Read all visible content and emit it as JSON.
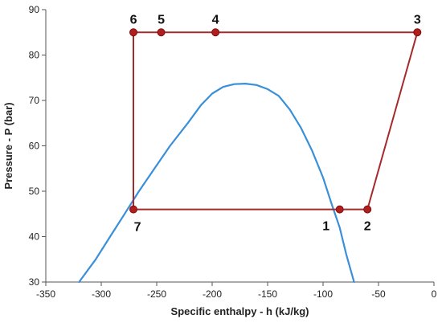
{
  "chart_data": {
    "type": "line",
    "xlabel": "Specific enthalpy - h (kJ/kg)",
    "ylabel": "Pressure - P (bar)",
    "xlim": [
      -350,
      0
    ],
    "ylim": [
      30,
      90
    ],
    "x_ticks": [
      -350,
      -300,
      -250,
      -200,
      -150,
      -100,
      -50,
      0
    ],
    "y_ticks": [
      30,
      40,
      50,
      60,
      70,
      80,
      90
    ],
    "grid": false,
    "series": [
      {
        "role": "saturation-dome",
        "color": "#3a8fd9",
        "points": [
          [
            -320,
            30
          ],
          [
            -305,
            35
          ],
          [
            -292,
            40
          ],
          [
            -279,
            45
          ],
          [
            -266,
            50
          ],
          [
            -252,
            55
          ],
          [
            -238,
            60
          ],
          [
            -222,
            65
          ],
          [
            -210,
            69
          ],
          [
            -200,
            71.5
          ],
          [
            -190,
            73
          ],
          [
            -180,
            73.6
          ],
          [
            -170,
            73.7
          ],
          [
            -160,
            73.4
          ],
          [
            -150,
            72.5
          ],
          [
            -140,
            71
          ],
          [
            -130,
            68
          ],
          [
            -120,
            64
          ],
          [
            -110,
            59
          ],
          [
            -100,
            53
          ],
          [
            -92,
            47
          ],
          [
            -85,
            42
          ],
          [
            -79,
            36
          ],
          [
            -72,
            30
          ]
        ]
      },
      {
        "role": "cycle",
        "color": "#a52a2a",
        "points": [
          [
            -85,
            46
          ],
          [
            -60,
            46
          ],
          [
            -15,
            85
          ],
          [
            -197,
            85
          ],
          [
            -246,
            85
          ],
          [
            -271,
            85
          ],
          [
            -271,
            46
          ],
          [
            -85,
            46
          ]
        ]
      }
    ],
    "state_points": [
      {
        "label": "1",
        "x": -85,
        "y": 46
      },
      {
        "label": "2",
        "x": -60,
        "y": 46
      },
      {
        "label": "3",
        "x": -15,
        "y": 85
      },
      {
        "label": "4",
        "x": -197,
        "y": 85
      },
      {
        "label": "5",
        "x": -246,
        "y": 85
      },
      {
        "label": "6",
        "x": -271,
        "y": 85
      },
      {
        "label": "7",
        "x": -271,
        "y": 46
      }
    ],
    "point_color": "#b01e1e"
  }
}
